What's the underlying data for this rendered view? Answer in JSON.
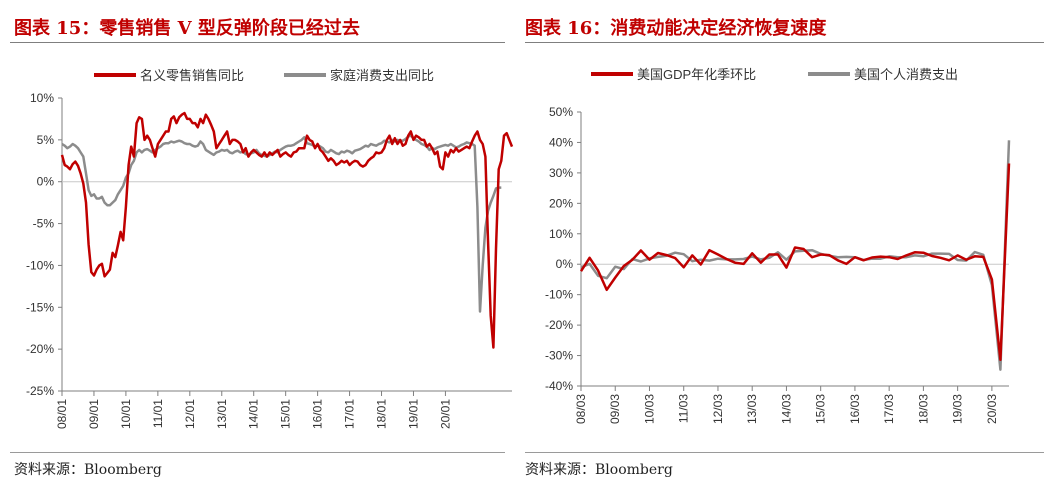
{
  "left": {
    "title": "图表 15：零售销售 V 型反弹阶段已经过去",
    "source": "资料来源：Bloomberg"
  },
  "right": {
    "title": "图表 16：消费动能决定经济恢复速度",
    "source": "资料来源：Bloomberg"
  },
  "colors": {
    "red": "#c00000",
    "gray": "#8c8c8c",
    "axis": "#7f7f7f",
    "text": "#333333"
  },
  "chart_data": [
    {
      "type": "line",
      "x_type": "monthly",
      "x_start": "2008-01",
      "x_end": "2020-10",
      "xtick_labels": [
        "08/01",
        "09/01",
        "10/01",
        "11/01",
        "12/01",
        "13/01",
        "14/01",
        "15/01",
        "16/01",
        "17/01",
        "18/01",
        "19/01",
        "20/01"
      ],
      "ylim": [
        -25,
        10
      ],
      "ytick_step": 5,
      "ytick_format": "percent",
      "legend_position": "top",
      "series": [
        {
          "name": "名义零售销售同比",
          "color": "#c00000",
          "values": [
            3.2,
            2.0,
            1.8,
            1.5,
            2.1,
            2.4,
            1.9,
            1.0,
            -0.2,
            -2.5,
            -7.5,
            -10.8,
            -11.2,
            -10.5,
            -10.0,
            -9.8,
            -11.3,
            -10.9,
            -10.5,
            -8.5,
            -9.0,
            -7.6,
            -6.0,
            -7.0,
            -3.0,
            2.0,
            4.2,
            3.0,
            7.0,
            7.7,
            7.5,
            5.0,
            5.5,
            5.0,
            4.0,
            3.0,
            4.5,
            5.0,
            5.5,
            6.0,
            6.0,
            7.5,
            7.8,
            7.0,
            7.7,
            8.0,
            8.2,
            7.5,
            7.5,
            7.0,
            7.0,
            6.5,
            7.5,
            7.0,
            8.0,
            7.5,
            6.8,
            6.0,
            4.0,
            4.5,
            5.0,
            5.5,
            6.0,
            4.5,
            5.0,
            5.0,
            4.8,
            4.5,
            3.5,
            4.0,
            3.0,
            3.5,
            3.8,
            3.5,
            3.2,
            3.0,
            3.5,
            3.0,
            3.5,
            3.2,
            3.5,
            3.8,
            3.0,
            3.3,
            3.5,
            3.2,
            3.0,
            3.5,
            3.6,
            4.0,
            4.0,
            4.0,
            5.5,
            5.0,
            4.8,
            4.0,
            4.5,
            3.8,
            3.5,
            3.0,
            2.5,
            2.8,
            2.5,
            2.0,
            2.2,
            2.5,
            2.3,
            2.5,
            2.0,
            2.3,
            2.5,
            2.4,
            2.0,
            1.8,
            2.0,
            2.5,
            2.8,
            3.0,
            3.5,
            3.4,
            3.5,
            4.0,
            5.0,
            5.5,
            4.5,
            5.2,
            4.5,
            5.0,
            4.3,
            4.5,
            5.5,
            6.0,
            5.0,
            5.5,
            5.3,
            5.0,
            5.0,
            4.2,
            4.5,
            4.0,
            3.3,
            3.6,
            1.8,
            1.5,
            3.5,
            3.0,
            3.8,
            3.5,
            4.0,
            3.6,
            3.8,
            4.0,
            4.2,
            4.0,
            4.8,
            5.5,
            6.0,
            5.0,
            4.5,
            3.0,
            -7.0,
            -16.0,
            -19.8,
            -8.0,
            1.5,
            2.5,
            5.5,
            5.8,
            5.0,
            4.2
          ]
        },
        {
          "name": "家庭消费支出同比",
          "color": "#8c8c8c",
          "values": [
            4.5,
            4.3,
            4.0,
            4.2,
            4.5,
            4.3,
            4.0,
            3.5,
            3.0,
            1.0,
            -1.0,
            -1.7,
            -1.5,
            -2.0,
            -2.0,
            -1.8,
            -2.5,
            -2.8,
            -2.8,
            -2.5,
            -2.2,
            -1.5,
            -1.0,
            -0.5,
            0.5,
            1.0,
            2.0,
            2.5,
            3.5,
            3.8,
            3.5,
            3.8,
            3.9,
            3.7,
            3.5,
            3.8,
            4.0,
            4.2,
            4.5,
            4.6,
            4.6,
            4.8,
            4.7,
            4.8,
            4.9,
            4.8,
            4.6,
            4.5,
            4.5,
            4.3,
            4.2,
            4.3,
            4.8,
            4.5,
            3.8,
            3.6,
            3.4,
            3.2,
            3.5,
            3.6,
            3.8,
            3.7,
            3.8,
            3.5,
            3.4,
            3.6,
            3.7,
            3.5,
            3.6,
            3.3,
            3.2,
            3.4,
            3.5,
            3.8,
            3.4,
            3.2,
            3.1,
            3.0,
            3.2,
            3.4,
            3.6,
            3.5,
            3.8,
            4.0,
            4.2,
            4.3,
            4.3,
            4.4,
            4.6,
            4.8,
            5.0,
            5.3,
            4.6,
            4.5,
            4.4,
            4.2,
            4.4,
            4.2,
            4.0,
            3.6,
            3.5,
            3.8,
            3.6,
            3.4,
            3.3,
            3.6,
            3.5,
            3.7,
            3.6,
            3.4,
            3.7,
            3.8,
            3.9,
            4.1,
            4.3,
            4.2,
            4.5,
            4.4,
            4.3,
            4.5,
            4.6,
            4.9,
            4.8,
            4.7,
            5.0,
            4.8,
            5.0,
            4.9,
            4.9,
            5.1,
            5.4,
            5.5,
            5.2,
            5.0,
            4.8,
            4.5,
            4.4,
            4.2,
            3.8,
            4.0,
            3.9,
            4.1,
            4.2,
            4.3,
            4.4,
            4.3,
            4.5,
            4.3,
            4.1,
            4.2,
            4.4,
            4.5,
            4.7,
            4.6,
            4.5,
            4.3,
            -3.0,
            -15.5,
            -10.0,
            -5.5,
            -3.5,
            -2.5,
            -1.7,
            -0.8,
            -0.7,
            -0.7
          ]
        }
      ]
    },
    {
      "type": "line",
      "x_type": "quarterly",
      "x_start": "2008-03",
      "x_end": "2020-09",
      "xtick_labels": [
        "08/03",
        "09/03",
        "10/03",
        "11/03",
        "12/03",
        "13/03",
        "14/03",
        "15/03",
        "16/03",
        "17/03",
        "18/03",
        "19/03",
        "20/03"
      ],
      "ylim": [
        -40,
        50
      ],
      "ytick_step": 10,
      "ytick_format": "percent",
      "legend_position": "top",
      "series": [
        {
          "name": "美国GDP年化季环比",
          "color": "#c00000",
          "values": [
            -2.3,
            2.1,
            -2.1,
            -8.4,
            -4.4,
            -0.6,
            1.5,
            4.5,
            1.5,
            3.7,
            3.0,
            2.0,
            -1.0,
            2.9,
            -0.1,
            4.6,
            3.2,
            1.7,
            0.5,
            0.1,
            3.6,
            0.5,
            3.2,
            3.2,
            -1.1,
            5.5,
            5.0,
            2.3,
            3.2,
            3.0,
            1.3,
            0.1,
            2.3,
            1.3,
            2.2,
            2.5,
            2.3,
            1.7,
            2.9,
            3.9,
            3.8,
            2.7,
            2.1,
            1.3,
            2.9,
            1.5,
            2.6,
            2.4,
            -5.0,
            -31.4,
            33.1
          ]
        },
        {
          "name": "美国个人消费支出",
          "color": "#8c8c8c",
          "values": [
            -1.0,
            0.1,
            -3.8,
            -4.6,
            -0.8,
            -1.6,
            1.7,
            0.9,
            1.9,
            2.4,
            2.8,
            3.8,
            3.3,
            1.0,
            1.5,
            1.2,
            1.8,
            1.6,
            1.6,
            1.7,
            2.5,
            1.6,
            2.1,
            3.9,
            1.5,
            4.2,
            4.4,
            4.6,
            3.4,
            2.8,
            2.3,
            2.4,
            2.3,
            1.4,
            1.8,
            1.8,
            2.6,
            2.3,
            2.3,
            2.9,
            2.6,
            3.5,
            3.5,
            3.4,
            1.4,
            1.2,
            4.0,
            3.1,
            -6.9,
            -34.6,
            40.7
          ]
        }
      ]
    }
  ]
}
